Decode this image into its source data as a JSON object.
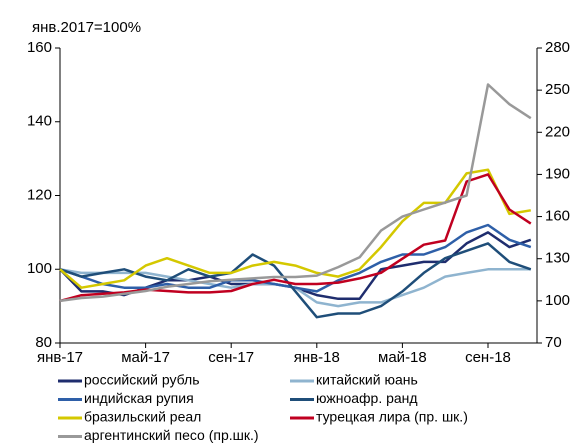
{
  "chart_data": {
    "type": "line",
    "y_unit_label": "янв.2017=100%",
    "categories": [
      "янв-17",
      null,
      null,
      null,
      "май-17",
      null,
      null,
      null,
      "сен-17",
      null,
      null,
      null,
      "янв-18",
      null,
      null,
      null,
      "май-18",
      null,
      null,
      null,
      "сен-18",
      null,
      null
    ],
    "ylim": [
      80,
      160
    ],
    "yticks": [
      80,
      100,
      120,
      140,
      160
    ],
    "y2lim": [
      70,
      280
    ],
    "y2ticks": [
      70,
      100,
      130,
      160,
      190,
      220,
      250,
      280
    ],
    "series": [
      {
        "name": "российский рубль",
        "color": "#1f2d6e",
        "values": [
          100,
          94,
          94,
          93,
          95,
          97,
          97,
          98,
          96,
          96,
          96,
          95,
          93,
          92,
          92,
          100,
          101,
          102,
          102,
          107,
          110,
          106,
          108
        ]
      },
      {
        "name": "китайский юань",
        "color": "#8fb4cf",
        "values": [
          100,
          99,
          99,
          99,
          99,
          98,
          97,
          96,
          95,
          96,
          96,
          95,
          91,
          90,
          91,
          91,
          93,
          95,
          98,
          99,
          100,
          100,
          100
        ]
      },
      {
        "name": "индийская рупия",
        "color": "#2e5fa8",
        "values": [
          100,
          98,
          96,
          95,
          95,
          96,
          95,
          95,
          97,
          97,
          96,
          95,
          94,
          97,
          99,
          102,
          104,
          104,
          106,
          110,
          112,
          108,
          106
        ]
      },
      {
        "name": "южноафр. ранд",
        "color": "#1f4e79",
        "values": [
          100,
          98,
          99,
          100,
          98,
          97,
          100,
          98,
          99,
          104,
          101,
          94,
          87,
          88,
          88,
          90,
          94,
          99,
          103,
          105,
          107,
          102,
          100
        ]
      },
      {
        "name": "бразильский реал",
        "color": "#d4c800",
        "values": [
          100,
          95,
          96,
          97,
          101,
          103,
          101,
          99,
          99,
          101,
          102,
          101,
          99,
          98,
          100,
          106,
          113,
          118,
          118,
          126,
          127,
          115,
          116
        ]
      },
      {
        "name": "турецкая лира (пр. шк.)",
        "color": "#c00020",
        "axis": "y2",
        "values": [
          100,
          104,
          105,
          106,
          108,
          107,
          106,
          106,
          107,
          112,
          115,
          112,
          112,
          113,
          116,
          120,
          130,
          140,
          143,
          185,
          190,
          165,
          155
        ]
      },
      {
        "name": "аргентинский песо (пр.шк.)",
        "color": "#999999",
        "axis": "y2",
        "values": [
          100,
          102,
          103,
          105,
          107,
          110,
          112,
          114,
          115,
          116,
          117,
          117,
          118,
          124,
          131,
          150,
          160,
          165,
          170,
          175,
          254,
          240,
          230
        ]
      }
    ]
  }
}
